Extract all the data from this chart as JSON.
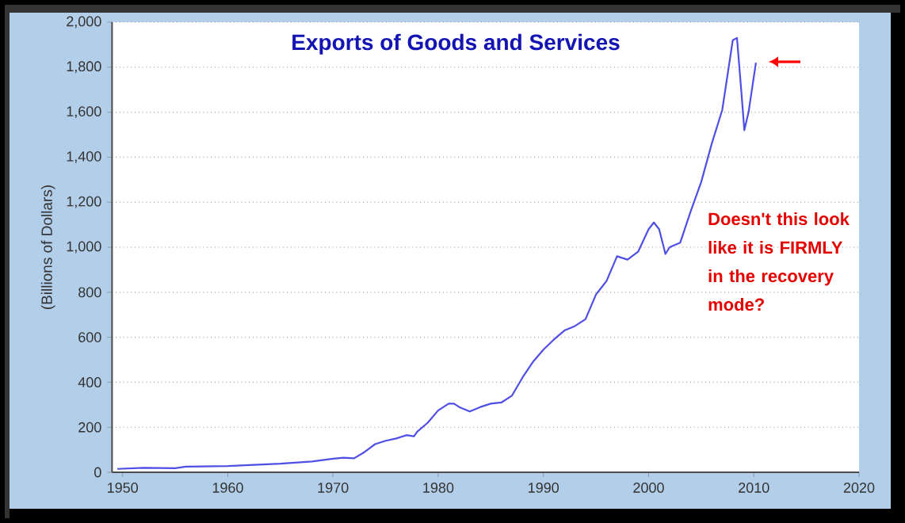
{
  "chart_data": {
    "type": "line",
    "title": "Exports of Goods and Services",
    "ylabel": "(Billions of Dollars)",
    "x": [
      1949.5,
      1952,
      1955,
      1956,
      1960,
      1965,
      1968,
      1970,
      1971,
      1972,
      1973,
      1974,
      1975,
      1976,
      1977,
      1977.7,
      1978,
      1979,
      1980,
      1981,
      1981.5,
      1982,
      1983,
      1984,
      1985,
      1986,
      1987,
      1988,
      1989,
      1990,
      1991,
      1992,
      1993,
      1994,
      1995,
      1996,
      1997,
      1998,
      1999,
      2000,
      2000.5,
      2001,
      2001.6,
      2002,
      2003,
      2004,
      2005,
      2006,
      2007,
      2008,
      2008.4,
      2008.8,
      2009.1,
      2009.5,
      2010.2
    ],
    "series": [
      {
        "color": "#4f4fe6",
        "values": [
          15,
          20,
          18,
          25,
          28,
          38,
          48,
          60,
          65,
          62,
          90,
          125,
          140,
          150,
          165,
          160,
          180,
          220,
          275,
          305,
          305,
          290,
          270,
          290,
          305,
          310,
          340,
          420,
          490,
          545,
          590,
          630,
          650,
          680,
          790,
          850,
          960,
          945,
          980,
          1080,
          1110,
          1080,
          970,
          1000,
          1020,
          1160,
          1290,
          1460,
          1610,
          1920,
          1930,
          1700,
          1520,
          1600,
          1820
        ]
      }
    ],
    "xlim": [
      1949,
      2020
    ],
    "xticks": [
      1950,
      1960,
      1970,
      1980,
      1990,
      2000,
      2010,
      2020
    ],
    "ylim": [
      0,
      2000
    ],
    "yticks": [
      {
        "value": 0,
        "label": "0"
      },
      {
        "value": 200,
        "label": "200"
      },
      {
        "value": 400,
        "label": "400"
      },
      {
        "value": 600,
        "label": "600"
      },
      {
        "value": 800,
        "label": "800"
      },
      {
        "value": 1000,
        "label": "1,000"
      },
      {
        "value": 1200,
        "label": "1,200"
      },
      {
        "value": 1400,
        "label": "1,400"
      },
      {
        "value": 1600,
        "label": "1,600"
      },
      {
        "value": 1800,
        "label": "1,800"
      },
      {
        "value": 2000,
        "label": "2,000"
      }
    ],
    "grid": "y",
    "marker": "none",
    "line_style": "solid",
    "annotations": [
      "Doesn't this look like it is FIRMLY in the recovery mode?"
    ]
  }
}
